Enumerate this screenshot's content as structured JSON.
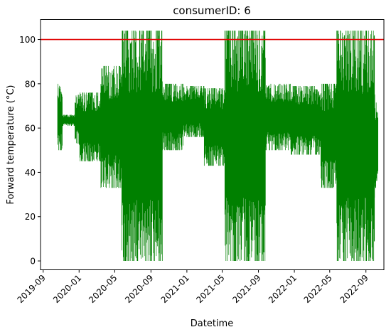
{
  "chart_data": {
    "type": "line",
    "title": "consumerID: 6",
    "xlabel": "Datetime",
    "ylabel": "Forward temperature (°C)",
    "ylim": [
      -4,
      109
    ],
    "xlim": [
      "2019-08-23",
      "2022-11-01"
    ],
    "y_ticks": [
      0,
      20,
      40,
      60,
      80,
      100
    ],
    "x_ticks": [
      "2019-09",
      "2020-01",
      "2020-05",
      "2020-09",
      "2021-01",
      "2021-05",
      "2021-09",
      "2022-01",
      "2022-05",
      "2022-09"
    ],
    "grid": false,
    "reference_line": {
      "y": 100,
      "color": "#e00000"
    },
    "series": [
      {
        "color": "#008000",
        "segments": [
          {
            "start": "2019-10-20",
            "end": "2019-11-05",
            "low": 50,
            "high": 80
          },
          {
            "start": "2019-11-05",
            "end": "2019-12-18",
            "low": 61,
            "high": 66
          },
          {
            "start": "2019-12-18",
            "end": "2020-01-01",
            "low": 53,
            "high": 75
          },
          {
            "start": "2020-01-01",
            "end": "2020-03-15",
            "low": 45,
            "high": 76
          },
          {
            "start": "2020-03-15",
            "end": "2020-05-25",
            "low": 33,
            "high": 88
          },
          {
            "start": "2020-05-25",
            "end": "2020-10-10",
            "low": 0,
            "high": 104
          },
          {
            "start": "2020-10-10",
            "end": "2020-12-20",
            "low": 50,
            "high": 80
          },
          {
            "start": "2020-12-20",
            "end": "2021-03-01",
            "low": 56,
            "high": 79
          },
          {
            "start": "2021-03-01",
            "end": "2021-05-10",
            "low": 43,
            "high": 78
          },
          {
            "start": "2021-05-10",
            "end": "2021-09-25",
            "low": 0,
            "high": 104
          },
          {
            "start": "2021-09-25",
            "end": "2021-12-20",
            "low": 50,
            "high": 80
          },
          {
            "start": "2021-12-20",
            "end": "2022-04-01",
            "low": 48,
            "high": 79
          },
          {
            "start": "2022-04-01",
            "end": "2022-05-25",
            "low": 33,
            "high": 80
          },
          {
            "start": "2022-05-25",
            "end": "2022-10-01",
            "low": 0,
            "high": 104
          },
          {
            "start": "2022-10-01",
            "end": "2022-10-12",
            "low": 33,
            "high": 75
          }
        ]
      }
    ]
  }
}
